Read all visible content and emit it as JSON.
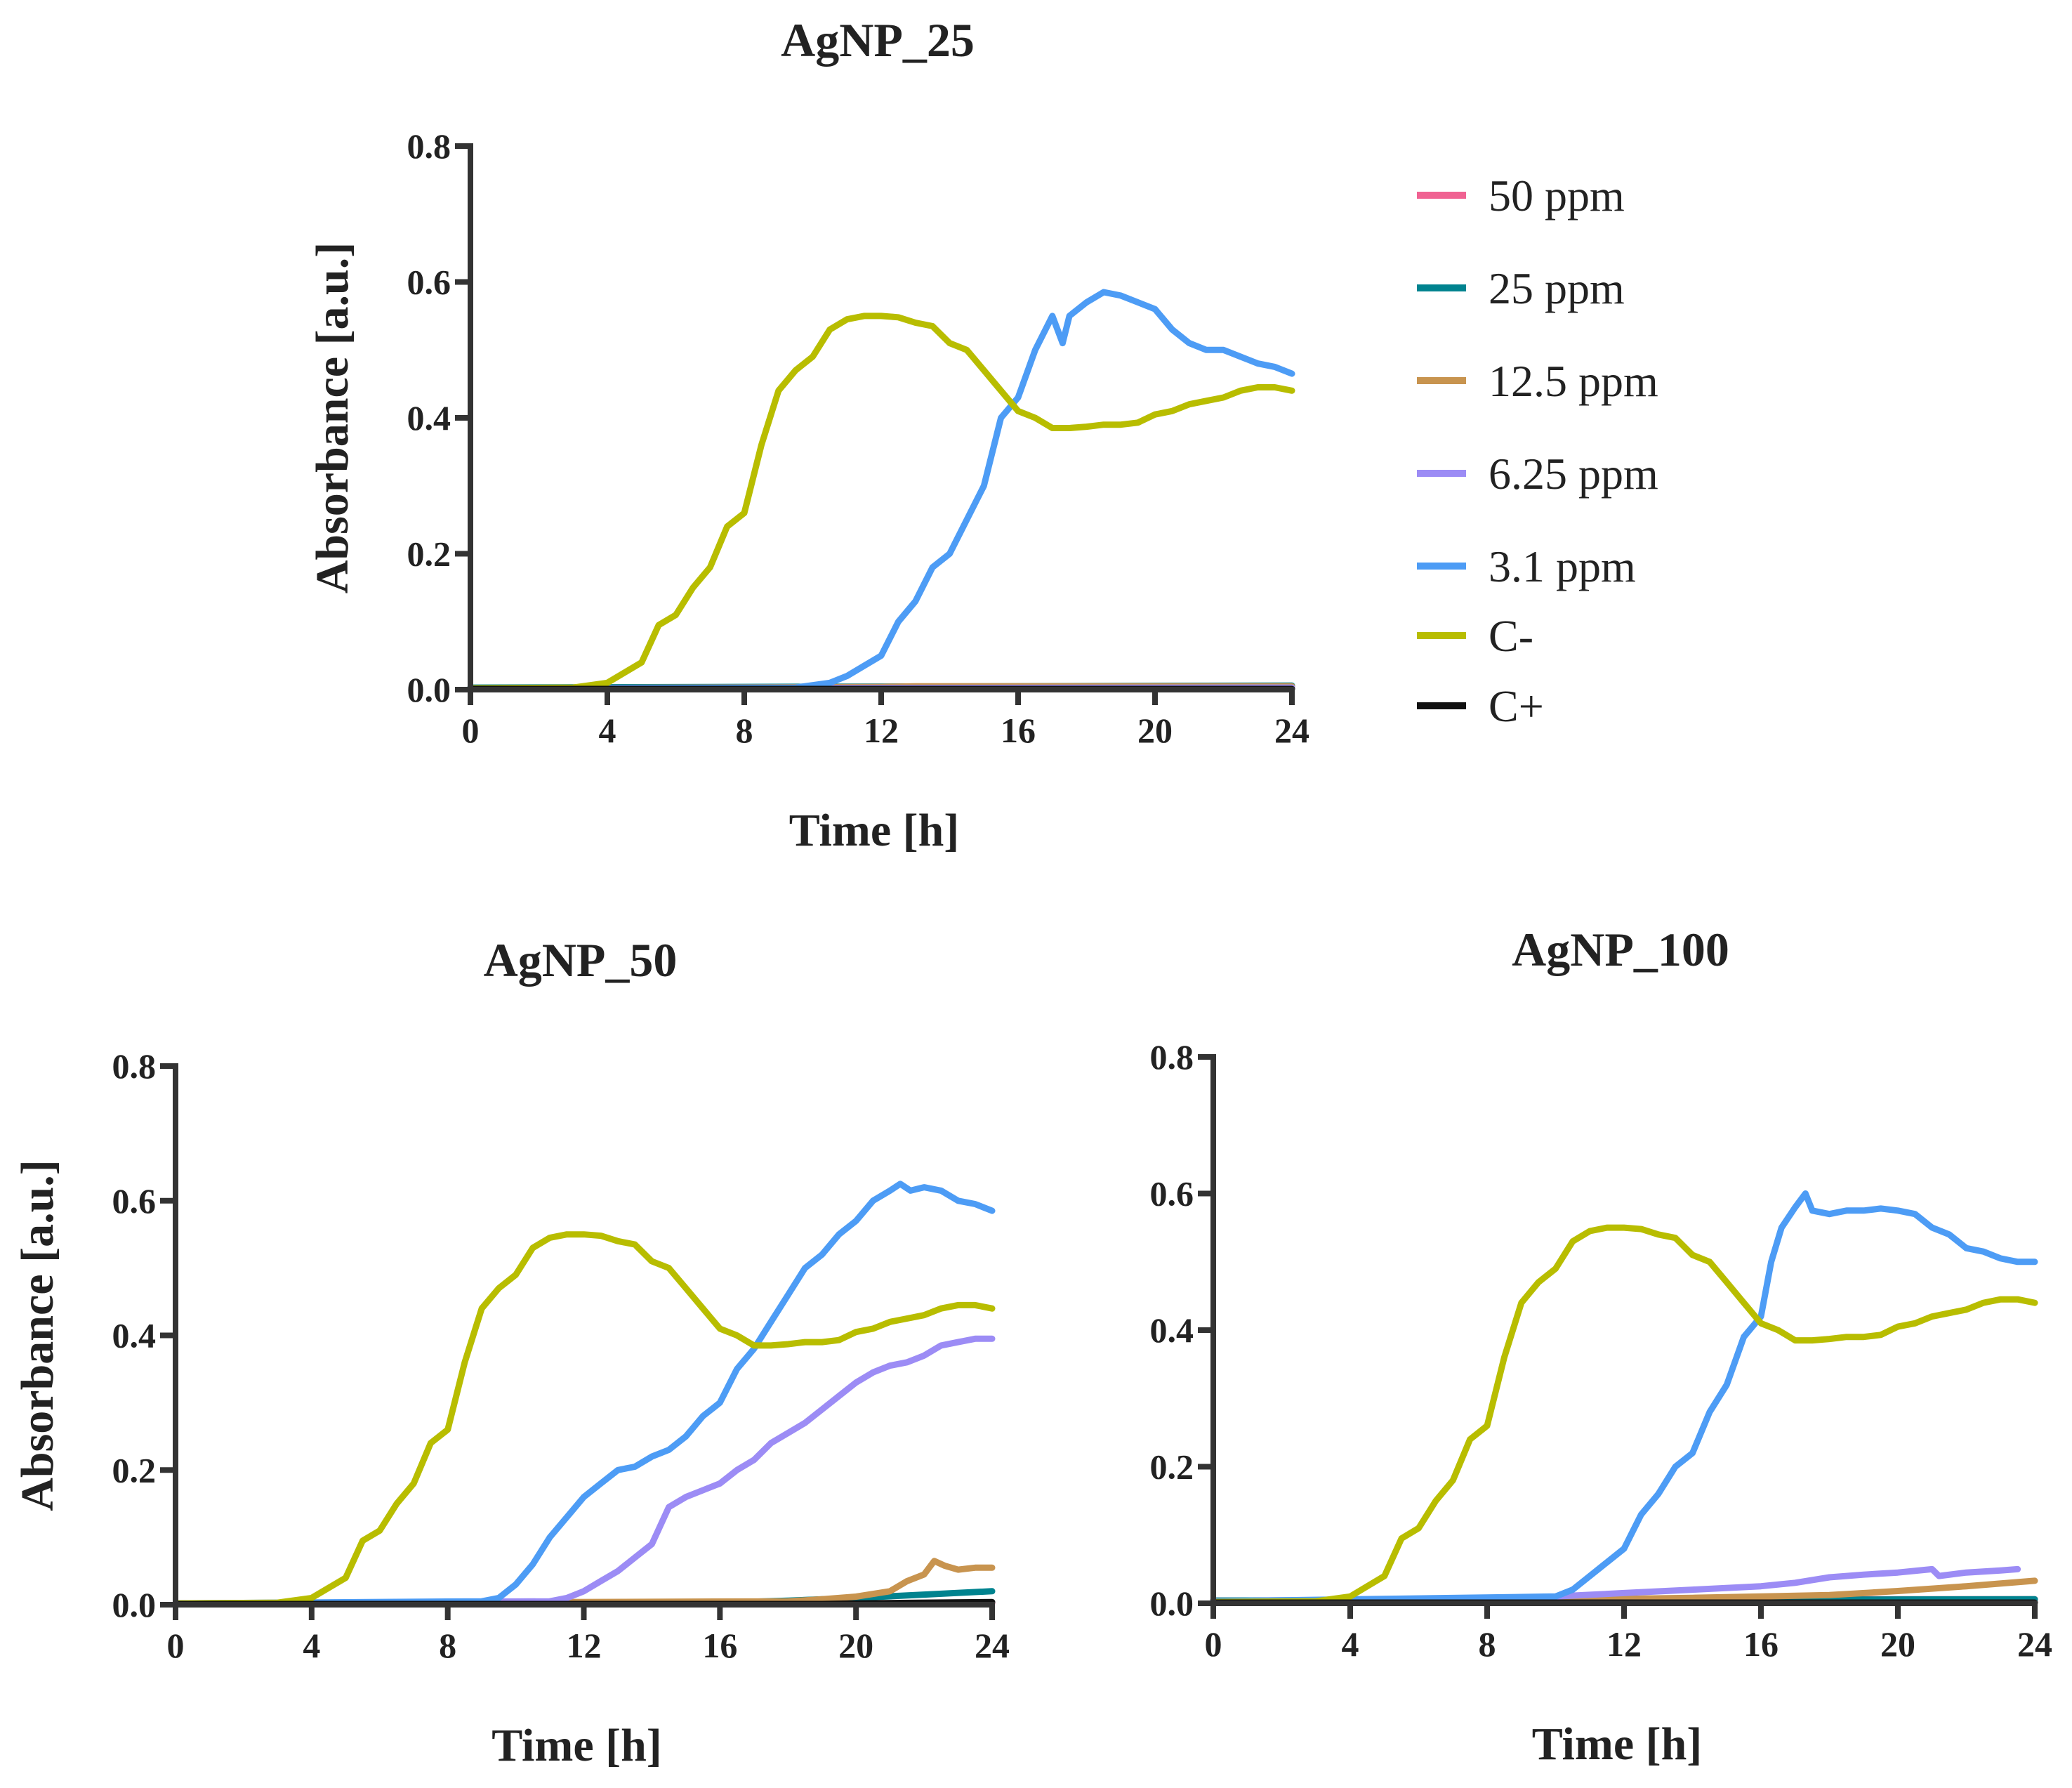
{
  "legend": [
    {
      "name": "50 ppm",
      "color": "#F06292"
    },
    {
      "name": "25 ppm",
      "color": "#00838F"
    },
    {
      "name": "12.5 ppm",
      "color": "#C8944F"
    },
    {
      "name": "6.25 ppm",
      "color": "#9C8CF5"
    },
    {
      "name": "3.1 ppm",
      "color": "#4D9CF5"
    },
    {
      "name": "C-",
      "color": "#B8BD00"
    },
    {
      "name": "C+",
      "color": "#111111"
    }
  ],
  "chart_data": [
    {
      "type": "line",
      "title": "AgNP_25",
      "xlabel": "Time [h]",
      "ylabel": "Absorbance [a.u.]",
      "xlim": [
        0,
        24
      ],
      "ylim": [
        0,
        0.8
      ],
      "xticks": [
        "0",
        "4",
        "8",
        "12",
        "16",
        "20",
        "24"
      ],
      "yticks": [
        "0.0",
        "0.2",
        "0.4",
        "0.6",
        "0.8"
      ],
      "series": [
        {
          "name": "50 ppm",
          "color": "#F06292",
          "x": [
            0,
            24
          ],
          "y": [
            0.002,
            0.002
          ]
        },
        {
          "name": "25 ppm",
          "color": "#00838F",
          "x": [
            0,
            8,
            16,
            24
          ],
          "y": [
            0.003,
            0.004,
            0.005,
            0.006
          ]
        },
        {
          "name": "12.5 ppm",
          "color": "#C8944F",
          "x": [
            0,
            12,
            13,
            24
          ],
          "y": [
            0.002,
            0.004,
            0.005,
            0.005
          ]
        },
        {
          "name": "6.25 ppm",
          "color": "#9C8CF5",
          "x": [
            0,
            24
          ],
          "y": [
            0.002,
            0.003
          ]
        },
        {
          "name": "3.1 ppm",
          "color": "#4D9CF5",
          "x": [
            0,
            9.5,
            10.5,
            11,
            11.5,
            12,
            12.5,
            13,
            13.5,
            14,
            14.5,
            15,
            15.5,
            16,
            16.5,
            17,
            17.3,
            17.5,
            18,
            18.5,
            19,
            19.5,
            20,
            20.5,
            21,
            21.5,
            22,
            22.5,
            23,
            23.5,
            24
          ],
          "y": [
            0.002,
            0.003,
            0.01,
            0.02,
            0.035,
            0.05,
            0.1,
            0.13,
            0.18,
            0.2,
            0.25,
            0.3,
            0.4,
            0.43,
            0.5,
            0.55,
            0.51,
            0.55,
            0.57,
            0.585,
            0.58,
            0.57,
            0.56,
            0.53,
            0.51,
            0.5,
            0.5,
            0.49,
            0.48,
            0.475,
            0.465
          ]
        },
        {
          "name": "C-",
          "color": "#B8BD00",
          "x": [
            0,
            3,
            4,
            4.5,
            5,
            5.5,
            6,
            6.5,
            7,
            7.5,
            8,
            8.5,
            9,
            9.5,
            10,
            10.5,
            11,
            11.5,
            12,
            12.5,
            13,
            13.5,
            14,
            14.5,
            15,
            15.5,
            16,
            16.5,
            17,
            17.5,
            18,
            18.5,
            19,
            19.5,
            20,
            20.5,
            21,
            21.5,
            22,
            22.5,
            23,
            23.5,
            24
          ],
          "y": [
            0.002,
            0.003,
            0.01,
            0.025,
            0.04,
            0.095,
            0.11,
            0.15,
            0.18,
            0.24,
            0.26,
            0.36,
            0.44,
            0.47,
            0.49,
            0.53,
            0.545,
            0.55,
            0.55,
            0.548,
            0.54,
            0.535,
            0.51,
            0.5,
            0.47,
            0.44,
            0.41,
            0.4,
            0.385,
            0.385,
            0.387,
            0.39,
            0.39,
            0.393,
            0.405,
            0.41,
            0.42,
            0.425,
            0.43,
            0.44,
            0.445,
            0.445,
            0.44
          ]
        },
        {
          "name": "C+",
          "color": "#111111",
          "x": [
            0,
            24
          ],
          "y": [
            0.001,
            0.001
          ]
        }
      ]
    },
    {
      "type": "line",
      "title": "AgNP_50",
      "xlabel": "Time [h]",
      "ylabel": "Absorbance [a.u.]",
      "xlim": [
        0,
        24
      ],
      "ylim": [
        0,
        0.8
      ],
      "xticks": [
        "0",
        "4",
        "8",
        "12",
        "16",
        "20",
        "24"
      ],
      "yticks": [
        "0.0",
        "0.2",
        "0.4",
        "0.6",
        "0.8"
      ],
      "series": [
        {
          "name": "50 ppm",
          "color": "#F06292",
          "x": [
            0,
            24
          ],
          "y": [
            0.002,
            0.002
          ]
        },
        {
          "name": "25 ppm",
          "color": "#00838F",
          "x": [
            0,
            16,
            18,
            20,
            22,
            24
          ],
          "y": [
            0.002,
            0.003,
            0.006,
            0.01,
            0.015,
            0.02
          ]
        },
        {
          "name": "12.5 ppm",
          "color": "#C8944F",
          "x": [
            0,
            18,
            19,
            20,
            21,
            21.5,
            22,
            22.3,
            22.6,
            23,
            23.5,
            24
          ],
          "y": [
            0.002,
            0.005,
            0.008,
            0.012,
            0.02,
            0.035,
            0.045,
            0.065,
            0.058,
            0.052,
            0.055,
            0.055
          ]
        },
        {
          "name": "6.25 ppm",
          "color": "#9C8CF5",
          "x": [
            0,
            11,
            11.5,
            12,
            12.5,
            13,
            13.5,
            14,
            14.5,
            15,
            15.5,
            16,
            16.5,
            17,
            17.5,
            18,
            18.5,
            19,
            19.5,
            20,
            20.5,
            21,
            21.5,
            22,
            22.5,
            23,
            23.5,
            24
          ],
          "y": [
            0.002,
            0.005,
            0.01,
            0.02,
            0.035,
            0.05,
            0.07,
            0.09,
            0.145,
            0.16,
            0.17,
            0.18,
            0.2,
            0.215,
            0.24,
            0.255,
            0.27,
            0.29,
            0.31,
            0.33,
            0.345,
            0.355,
            0.36,
            0.37,
            0.385,
            0.39,
            0.395,
            0.395
          ]
        },
        {
          "name": "3.1 ppm",
          "color": "#4D9CF5",
          "x": [
            0,
            9,
            9.5,
            10,
            10.5,
            11,
            11.5,
            12,
            12.5,
            13,
            13.5,
            14,
            14.5,
            15,
            15.5,
            16,
            16.5,
            17,
            17.5,
            18,
            18.5,
            19,
            19.5,
            20,
            20.5,
            21,
            21.3,
            21.6,
            22,
            22.5,
            23,
            23.5,
            24
          ],
          "y": [
            0.002,
            0.005,
            0.01,
            0.03,
            0.06,
            0.1,
            0.13,
            0.16,
            0.18,
            0.2,
            0.205,
            0.22,
            0.23,
            0.25,
            0.28,
            0.3,
            0.35,
            0.38,
            0.42,
            0.46,
            0.5,
            0.52,
            0.55,
            0.57,
            0.6,
            0.615,
            0.625,
            0.615,
            0.62,
            0.615,
            0.6,
            0.595,
            0.585
          ]
        },
        {
          "name": "C-",
          "color": "#B8BD00",
          "x": [
            0,
            3,
            4,
            4.5,
            5,
            5.5,
            6,
            6.5,
            7,
            7.5,
            8,
            8.5,
            9,
            9.5,
            10,
            10.5,
            11,
            11.5,
            12,
            12.5,
            13,
            13.5,
            14,
            14.5,
            15,
            15.5,
            16,
            16.5,
            17,
            17.5,
            18,
            18.5,
            19,
            19.5,
            20,
            20.5,
            21,
            21.5,
            22,
            22.5,
            23,
            23.5,
            24
          ],
          "y": [
            0.002,
            0.003,
            0.01,
            0.025,
            0.04,
            0.095,
            0.11,
            0.15,
            0.18,
            0.24,
            0.26,
            0.36,
            0.44,
            0.47,
            0.49,
            0.53,
            0.545,
            0.55,
            0.55,
            0.548,
            0.54,
            0.535,
            0.51,
            0.5,
            0.47,
            0.44,
            0.41,
            0.4,
            0.385,
            0.385,
            0.387,
            0.39,
            0.39,
            0.393,
            0.405,
            0.41,
            0.42,
            0.425,
            0.43,
            0.44,
            0.445,
            0.445,
            0.44
          ]
        },
        {
          "name": "C+",
          "color": "#111111",
          "x": [
            0,
            19,
            20,
            22,
            24
          ],
          "y": [
            0.001,
            0.001,
            0.002,
            0.003,
            0.004
          ]
        }
      ]
    },
    {
      "type": "line",
      "title": "AgNP_100",
      "xlabel": "Time [h]",
      "ylabel": "",
      "xlim": [
        0,
        24
      ],
      "ylim": [
        0,
        0.8
      ],
      "xticks": [
        "0",
        "4",
        "8",
        "12",
        "16",
        "20",
        "24"
      ],
      "yticks": [
        "0.0",
        "0.2",
        "0.4",
        "0.6",
        "0.8"
      ],
      "series": [
        {
          "name": "50 ppm",
          "color": "#F06292",
          "x": [
            0,
            8,
            16,
            24
          ],
          "y": [
            0.004,
            0.005,
            0.006,
            0.006
          ]
        },
        {
          "name": "25 ppm",
          "color": "#00838F",
          "x": [
            0,
            24
          ],
          "y": [
            0.004,
            0.006
          ]
        },
        {
          "name": "12.5 ppm",
          "color": "#C8944F",
          "x": [
            0,
            10,
            14,
            18,
            20,
            22,
            24
          ],
          "y": [
            0.003,
            0.005,
            0.008,
            0.012,
            0.018,
            0.025,
            0.033
          ]
        },
        {
          "name": "6.25 ppm",
          "color": "#9C8CF5",
          "x": [
            0,
            9,
            10,
            12,
            14,
            16,
            17,
            18,
            19,
            20,
            21,
            21.2,
            22,
            23,
            23.5
          ],
          "y": [
            0.003,
            0.006,
            0.01,
            0.015,
            0.02,
            0.025,
            0.03,
            0.038,
            0.042,
            0.045,
            0.05,
            0.04,
            0.045,
            0.048,
            0.05
          ]
        },
        {
          "name": "3.1 ppm",
          "color": "#4D9CF5",
          "x": [
            0,
            10,
            10.5,
            11,
            11.5,
            12,
            12.5,
            13,
            13.5,
            14,
            14.5,
            15,
            15.5,
            16,
            16.3,
            16.6,
            17,
            17.3,
            17.5,
            18,
            18.5,
            19,
            19.5,
            20,
            20.5,
            21,
            21.5,
            22,
            22.5,
            23,
            23.5,
            24
          ],
          "y": [
            0.003,
            0.01,
            0.02,
            0.04,
            0.06,
            0.08,
            0.13,
            0.16,
            0.2,
            0.22,
            0.28,
            0.32,
            0.39,
            0.42,
            0.5,
            0.55,
            0.58,
            0.6,
            0.575,
            0.57,
            0.575,
            0.575,
            0.578,
            0.575,
            0.57,
            0.55,
            0.54,
            0.52,
            0.515,
            0.505,
            0.5,
            0.5
          ]
        },
        {
          "name": "C-",
          "color": "#B8BD00",
          "x": [
            0,
            3,
            4,
            4.5,
            5,
            5.5,
            6,
            6.5,
            7,
            7.5,
            8,
            8.5,
            9,
            9.5,
            10,
            10.5,
            11,
            11.5,
            12,
            12.5,
            13,
            13.5,
            14,
            14.5,
            15,
            15.5,
            16,
            16.5,
            17,
            17.5,
            18,
            18.5,
            19,
            19.5,
            20,
            20.5,
            21,
            21.5,
            22,
            22.5,
            23,
            23.5,
            24
          ],
          "y": [
            0.002,
            0.003,
            0.01,
            0.025,
            0.04,
            0.095,
            0.11,
            0.15,
            0.18,
            0.24,
            0.26,
            0.36,
            0.44,
            0.47,
            0.49,
            0.53,
            0.545,
            0.55,
            0.55,
            0.548,
            0.54,
            0.535,
            0.51,
            0.5,
            0.47,
            0.44,
            0.41,
            0.4,
            0.385,
            0.385,
            0.387,
            0.39,
            0.39,
            0.393,
            0.405,
            0.41,
            0.42,
            0.425,
            0.43,
            0.44,
            0.445,
            0.445,
            0.44
          ]
        },
        {
          "name": "C+",
          "color": "#111111",
          "x": [
            0,
            24
          ],
          "y": [
            0.001,
            0.001
          ]
        }
      ]
    }
  ]
}
